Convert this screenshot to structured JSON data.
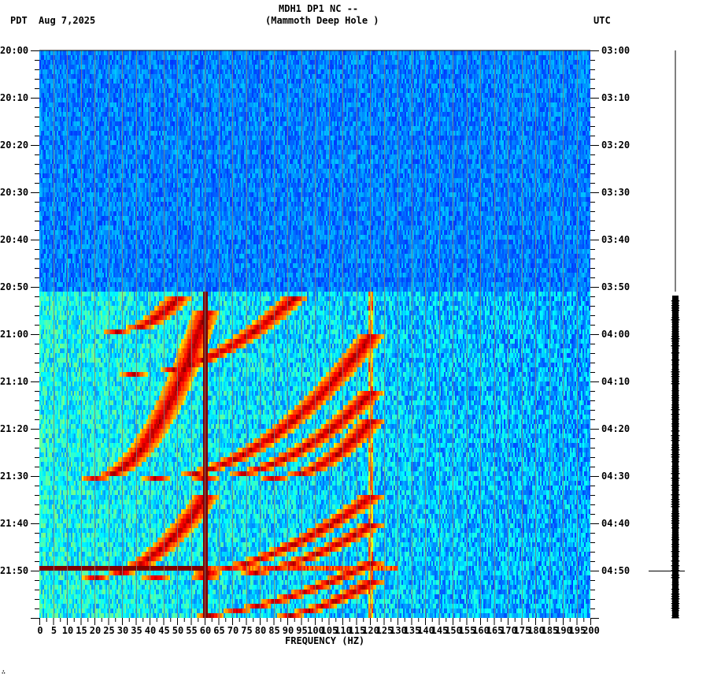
{
  "header": {
    "station_line": "MDH1 DP1 NC --",
    "station_name": "(Mammoth Deep Hole )",
    "left_tz": "PDT",
    "date": "Aug 7,2025",
    "right_tz": "UTC"
  },
  "footer": {
    "mark": "∴"
  },
  "chart_data": {
    "type": "heatmap",
    "title": "MDH1 DP1 NC -- (Mammoth Deep Hole )",
    "subtitle": "Aug 7,2025",
    "xlabel": "FREQUENCY (HZ)",
    "ylabel_left": "PDT",
    "ylabel_right": "UTC",
    "xlim": [
      0,
      200
    ],
    "x_ticks": [
      0,
      5,
      10,
      15,
      20,
      25,
      30,
      35,
      40,
      45,
      50,
      55,
      60,
      65,
      70,
      75,
      80,
      85,
      90,
      95,
      100,
      105,
      110,
      115,
      120,
      125,
      130,
      135,
      140,
      145,
      150,
      155,
      160,
      165,
      170,
      175,
      180,
      185,
      190,
      195,
      200
    ],
    "y_ticks_left": [
      "20:00",
      "20:10",
      "20:20",
      "20:30",
      "20:40",
      "20:50",
      "21:00",
      "21:10",
      "21:20",
      "21:30",
      "21:40",
      "21:50"
    ],
    "y_ticks_right": [
      "03:00",
      "03:10",
      "03:20",
      "03:30",
      "03:40",
      "03:50",
      "04:00",
      "04:10",
      "04:20",
      "04:30",
      "04:40",
      "04:50"
    ],
    "time_span_minutes": 120,
    "minor_tick_minutes": 2,
    "colormap": "jet",
    "data_gap_end_minute": 51,
    "features": {
      "persistent_line_hz": 60,
      "secondary_line_hz": 120,
      "broadband_burst_minute": 109,
      "broadband_burst_range_hz": [
        0,
        60
      ],
      "chirp_arcs": [
        {
          "start_min": 59,
          "end_min": 52,
          "f_start": 28,
          "f_end": 50
        },
        {
          "start_min": 68,
          "end_min": 52,
          "f_start": 34,
          "f_end": 92
        },
        {
          "start_min": 90,
          "end_min": 55,
          "f_start": 20,
          "f_end": 60
        },
        {
          "start_min": 90,
          "end_min": 60,
          "f_start": 42,
          "f_end": 120
        },
        {
          "start_min": 90,
          "end_min": 72,
          "f_start": 60,
          "f_end": 120
        },
        {
          "start_min": 90,
          "end_min": 78,
          "f_start": 85,
          "f_end": 120
        },
        {
          "start_min": 111,
          "end_min": 94,
          "f_start": 20,
          "f_end": 60
        },
        {
          "start_min": 111,
          "end_min": 94,
          "f_start": 42,
          "f_end": 120
        },
        {
          "start_min": 111,
          "end_min": 100,
          "f_start": 60,
          "f_end": 120
        },
        {
          "start_min": 120,
          "end_min": 108,
          "f_start": 38,
          "f_end": 120
        },
        {
          "start_min": 120,
          "end_min": 112,
          "f_start": 75,
          "f_end": 120
        }
      ]
    },
    "amplitude_trace": {
      "quiet_until_minute": 51,
      "active_from_minute": 51,
      "marker_minute": 110
    }
  }
}
